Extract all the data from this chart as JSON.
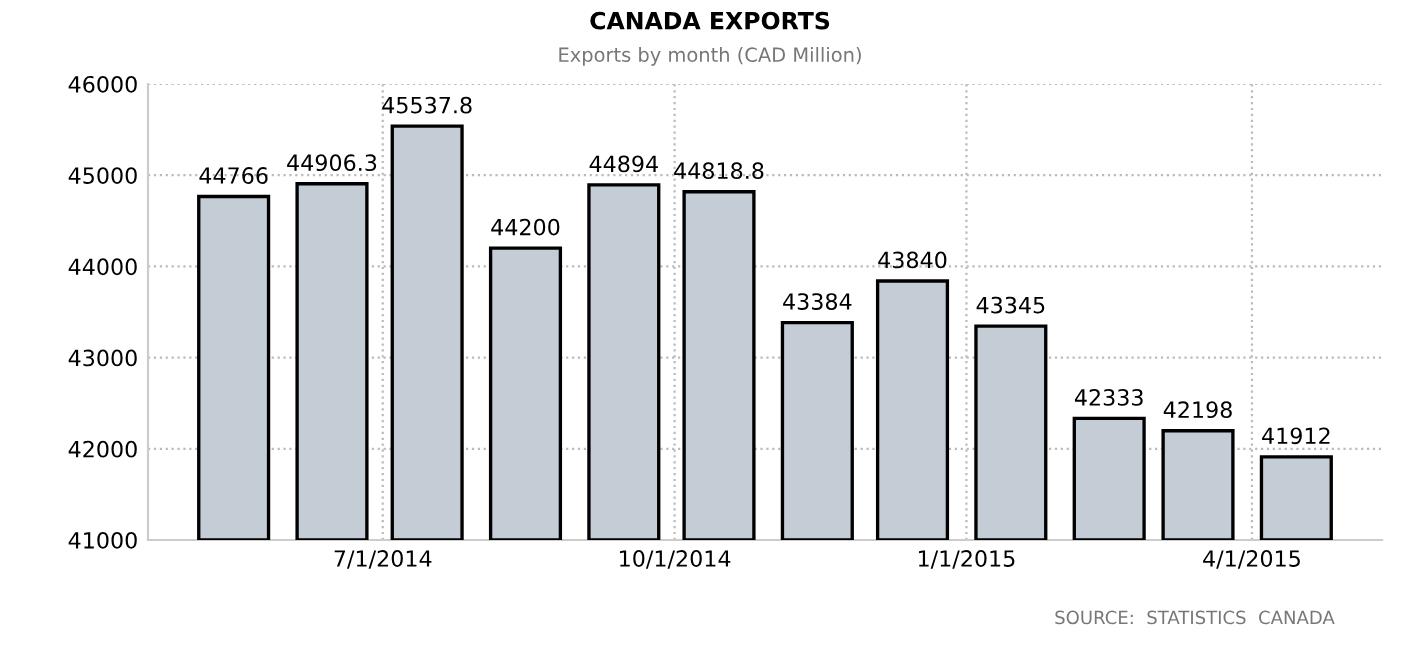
{
  "chart_data": {
    "type": "bar",
    "title": "CANADA EXPORTS",
    "subtitle": "Exports by month (CAD Million)",
    "x": [
      "2014-05-15",
      "2014-06-15",
      "2014-07-15",
      "2014-08-15",
      "2014-09-15",
      "2014-10-15",
      "2014-11-15",
      "2014-12-15",
      "2015-01-15",
      "2015-02-15",
      "2015-03-15",
      "2015-04-15"
    ],
    "values": [
      44766,
      44906.3,
      45537.8,
      44200,
      44894,
      44818.8,
      43384,
      43840,
      43345,
      42333,
      42198,
      41912
    ],
    "color": "#c4ccd6",
    "data_labels": true,
    "ylim": [
      41000,
      46000
    ],
    "yticks": [
      41000,
      42000,
      43000,
      44000,
      45000,
      46000
    ],
    "xlim": [
      "2014-04-18",
      "2015-05-12"
    ],
    "xticks": [
      {
        "value": "2014-07-01",
        "label": "7/1/2014"
      },
      {
        "value": "2014-10-01",
        "label": "10/1/2014"
      },
      {
        "value": "2015-01-01",
        "label": "1/1/2015"
      },
      {
        "value": "2015-04-01",
        "label": "4/1/2015"
      }
    ],
    "grid": true,
    "annotations": [
      "SOURCE:  STATISTICS  CANADA"
    ]
  }
}
